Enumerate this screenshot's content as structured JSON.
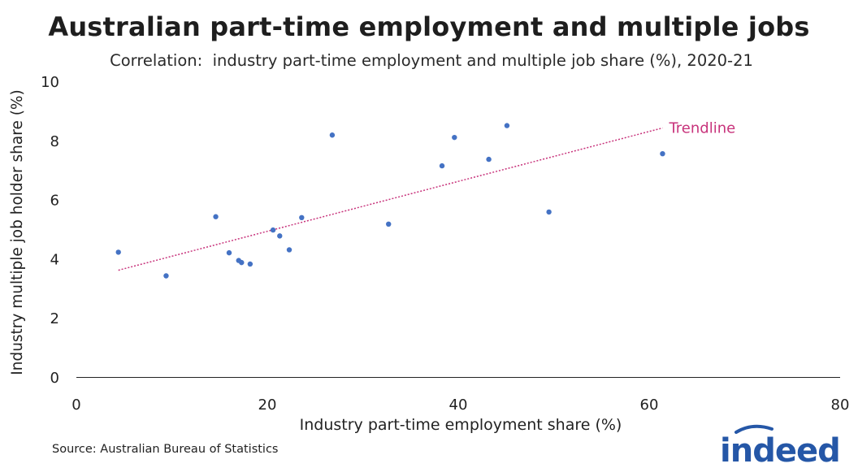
{
  "header": {
    "title": "Australian part-time employment and multiple jobs",
    "subtitle": "Correlation:  industry part-time employment and multiple job share (%), 2020-21"
  },
  "chart_data": {
    "type": "scatter",
    "title": "Australian part-time employment and multiple jobs",
    "subtitle": "Correlation:  industry part-time employment and multiple job share (%), 2020-21",
    "xlabel": "Industry part-time employment share (%)",
    "ylabel": "Industry multiple job holder share (%)",
    "xlim": [
      0,
      80
    ],
    "ylim": [
      0,
      10
    ],
    "xticks": [
      0,
      20,
      40,
      60,
      80
    ],
    "yticks": [
      0,
      2,
      4,
      6,
      8,
      10
    ],
    "grid": false,
    "series": [
      {
        "color": "#4472c4",
        "points": [
          {
            "x": 4.4,
            "y": 4.22
          },
          {
            "x": 9.4,
            "y": 3.42
          },
          {
            "x": 14.6,
            "y": 5.42
          },
          {
            "x": 16.0,
            "y": 4.2
          },
          {
            "x": 17.0,
            "y": 3.94
          },
          {
            "x": 17.3,
            "y": 3.87
          },
          {
            "x": 18.2,
            "y": 3.82
          },
          {
            "x": 20.6,
            "y": 4.97
          },
          {
            "x": 21.3,
            "y": 4.77
          },
          {
            "x": 22.3,
            "y": 4.3
          },
          {
            "x": 23.6,
            "y": 5.39
          },
          {
            "x": 26.8,
            "y": 8.18
          },
          {
            "x": 32.7,
            "y": 5.17
          },
          {
            "x": 38.3,
            "y": 7.14
          },
          {
            "x": 39.6,
            "y": 8.1
          },
          {
            "x": 43.2,
            "y": 7.36
          },
          {
            "x": 45.1,
            "y": 8.5
          },
          {
            "x": 49.5,
            "y": 5.58
          },
          {
            "x": 61.4,
            "y": 7.55
          }
        ]
      }
    ],
    "trendline": {
      "label": "Trendline",
      "color": "#c8347c",
      "x": [
        4.4,
        61.4
      ],
      "y": [
        3.61,
        8.42
      ]
    }
  },
  "footer": {
    "source": "Source: Australian Bureau of Statistics",
    "logo_text": "indeed",
    "logo_color": "#2557a7"
  }
}
